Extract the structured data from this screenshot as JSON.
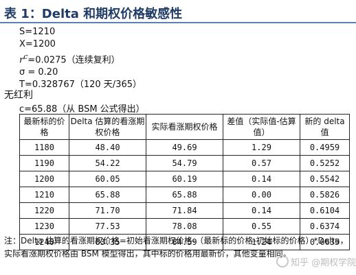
{
  "title": "表 1：Delta 和期权价格敏感性",
  "params": {
    "s": "S=1210",
    "x": "X=1200",
    "rc_symbol": "r",
    "rc_super": "c",
    "rc_value": "=0.0275（连续复利）",
    "sigma": "σ = 0.20",
    "t": "T=0.328767（120 天/365）"
  },
  "riskfree": "无红利",
  "c_value": "c=65.88（从 BSM 公式得出）",
  "table": {
    "headers": [
      "最新标的价格",
      "Delta 估算的看涨期权价格",
      "实际看涨期权价格",
      "差值（实际值-估算值）",
      "新的 delta 值"
    ],
    "rows": [
      [
        "1180",
        "48.40",
        "49.69",
        "1.29",
        "0.4959"
      ],
      [
        "1190",
        "54.22",
        "54.79",
        "0.57",
        "0.5252"
      ],
      [
        "1200",
        "60.05",
        "60.19",
        "0.14",
        "0.5542"
      ],
      [
        "1210",
        "65.88",
        "65.88",
        "0.00",
        "0.5826"
      ],
      [
        "1220",
        "71.70",
        "71.84",
        "0.14",
        "0.6104"
      ],
      [
        "1230",
        "77.53",
        "78.08",
        "0.55",
        "0.6374"
      ],
      [
        "1240",
        "83.35",
        "84.59",
        "1.24",
        "0.6635"
      ]
    ]
  },
  "note": {
    "line1": "注：Delta 估算的看涨期权价格=初始看涨期权价格-（最新标的价格-初始标的价格）*Delta，",
    "line2": "实际看涨期权价格由 BSM 模型得出，其中标的价格用最新价，其他变量相同。"
  },
  "watermark": "知乎 @期权学院"
}
